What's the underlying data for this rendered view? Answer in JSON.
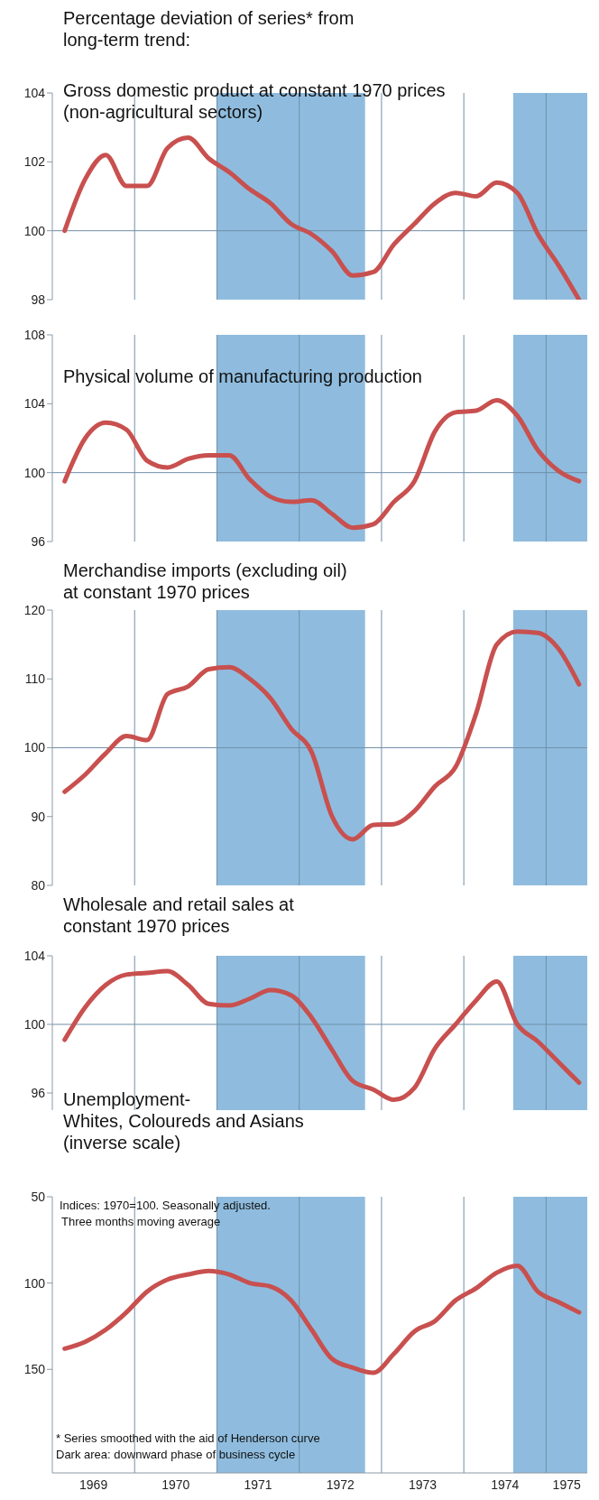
{
  "chart_data": [
    {
      "type": "line",
      "title": "Gross domestic product at constant 1970 prices\n(non-agricultural sectors)",
      "annotations": [
        "Percentage deviation of series* from\nlong-term trend:"
      ],
      "color": "#c8504f",
      "x": [
        1969.15,
        1969.4,
        1969.65,
        1969.9,
        1970.15,
        1970.4,
        1970.65,
        1970.9,
        1971.15,
        1971.4,
        1971.65,
        1971.9,
        1972.15,
        1972.4,
        1972.65,
        1972.9,
        1973.15,
        1973.4,
        1973.65,
        1973.9,
        1974.15,
        1974.4,
        1974.65,
        1974.9,
        1975.15,
        1975.4
      ],
      "values": [
        100.0,
        101.5,
        102.2,
        101.3,
        101.3,
        102.4,
        102.7,
        102.1,
        101.7,
        101.2,
        100.8,
        100.2,
        99.9,
        99.4,
        98.7,
        98.8,
        99.6,
        100.2,
        100.8,
        101.1,
        101.0,
        101.4,
        101.1,
        99.9,
        99.0,
        98.0
      ],
      "xlim": [
        1969,
        1975.5
      ],
      "ylim": [
        98,
        104
      ],
      "yticks": [
        98,
        100,
        102,
        104
      ],
      "tick_labels": "y",
      "ref_lines": [
        {
          "axis": "y",
          "value": 100,
          "color": "#6f8fa8"
        },
        {
          "axis": "x",
          "value": 1970,
          "color": "#6f8fa8"
        },
        {
          "axis": "x",
          "value": 1971,
          "color": "#6f8fa8"
        },
        {
          "axis": "x",
          "value": 1972,
          "color": "#6f8fa8"
        },
        {
          "axis": "x",
          "value": 1973,
          "color": "#6f8fa8"
        },
        {
          "axis": "x",
          "value": 1974,
          "color": "#6f8fa8"
        },
        {
          "axis": "x",
          "value": 1975,
          "color": "#6f8fa8"
        }
      ],
      "bands": [
        {
          "axis": "x",
          "from": 1971,
          "to": 1972.8,
          "color": "#8fbcde"
        },
        {
          "axis": "x",
          "from": 1974.6,
          "to": 1975.5,
          "color": "#8fbcde"
        }
      ]
    },
    {
      "type": "line",
      "title": "Physical volume of manufacturing production",
      "color": "#c8504f",
      "x": [
        1969.15,
        1969.4,
        1969.65,
        1969.9,
        1970.15,
        1970.4,
        1970.65,
        1970.9,
        1971.15,
        1971.4,
        1971.65,
        1971.9,
        1972.15,
        1972.4,
        1972.65,
        1972.9,
        1973.15,
        1973.4,
        1973.65,
        1973.9,
        1974.15,
        1974.4,
        1974.65,
        1974.9,
        1975.15,
        1975.4
      ],
      "values": [
        99.5,
        102.0,
        102.9,
        102.5,
        100.7,
        100.3,
        100.8,
        101.0,
        101.0,
        99.6,
        98.6,
        98.3,
        98.4,
        97.6,
        96.8,
        97.0,
        98.3,
        99.5,
        102.4,
        103.5,
        103.6,
        104.2,
        103.3,
        101.3,
        100.1,
        99.5
      ],
      "xlim": [
        1969,
        1975.5
      ],
      "ylim": [
        96,
        108
      ],
      "yticks": [
        96,
        100,
        104,
        108
      ],
      "tick_labels": "y",
      "ref_lines": [
        {
          "axis": "y",
          "value": 100,
          "color": "#6f8fa8"
        },
        {
          "axis": "x",
          "value": 1970,
          "color": "#6f8fa8"
        },
        {
          "axis": "x",
          "value": 1971,
          "color": "#6f8fa8"
        },
        {
          "axis": "x",
          "value": 1972,
          "color": "#6f8fa8"
        },
        {
          "axis": "x",
          "value": 1973,
          "color": "#6f8fa8"
        },
        {
          "axis": "x",
          "value": 1974,
          "color": "#6f8fa8"
        },
        {
          "axis": "x",
          "value": 1975,
          "color": "#6f8fa8"
        }
      ],
      "bands": [
        {
          "axis": "x",
          "from": 1971,
          "to": 1972.8,
          "color": "#8fbcde"
        },
        {
          "axis": "x",
          "from": 1974.6,
          "to": 1975.5,
          "color": "#8fbcde"
        }
      ]
    },
    {
      "type": "line",
      "title": "Merchandise imports (excluding oil)\nat constant 1970 prices",
      "color": "#c8504f",
      "x": [
        1969.15,
        1969.4,
        1969.65,
        1969.9,
        1970.15,
        1970.4,
        1970.65,
        1970.9,
        1971.15,
        1971.4,
        1971.65,
        1971.9,
        1972.15,
        1972.4,
        1972.65,
        1972.9,
        1973.15,
        1973.4,
        1973.65,
        1973.9,
        1974.15,
        1974.4,
        1974.65,
        1974.9,
        1975.15,
        1975.4
      ],
      "values": [
        93.6,
        96.1,
        99.2,
        101.7,
        101.1,
        107.8,
        108.9,
        111.4,
        111.7,
        110.0,
        107.2,
        102.8,
        99.4,
        90.0,
        86.7,
        88.8,
        88.9,
        90.8,
        94.4,
        97.2,
        105.0,
        115.0,
        116.9,
        116.7,
        114.4,
        109.2
      ],
      "xlim": [
        1969,
        1975.5
      ],
      "ylim": [
        80,
        120
      ],
      "yticks": [
        80,
        90,
        100,
        110,
        120
      ],
      "tick_labels": "y",
      "ref_lines": [
        {
          "axis": "y",
          "value": 100,
          "color": "#6f8fa8"
        },
        {
          "axis": "x",
          "value": 1970,
          "color": "#6f8fa8"
        },
        {
          "axis": "x",
          "value": 1971,
          "color": "#6f8fa8"
        },
        {
          "axis": "x",
          "value": 1972,
          "color": "#6f8fa8"
        },
        {
          "axis": "x",
          "value": 1973,
          "color": "#6f8fa8"
        },
        {
          "axis": "x",
          "value": 1974,
          "color": "#6f8fa8"
        },
        {
          "axis": "x",
          "value": 1975,
          "color": "#6f8fa8"
        }
      ],
      "bands": [
        {
          "axis": "x",
          "from": 1971,
          "to": 1972.8,
          "color": "#8fbcde"
        },
        {
          "axis": "x",
          "from": 1974.6,
          "to": 1975.5,
          "color": "#8fbcde"
        }
      ]
    },
    {
      "type": "line",
      "title": "Wholesale and retail sales at\nconstant 1970 prices",
      "color": "#c8504f",
      "x": [
        1969.15,
        1969.4,
        1969.65,
        1969.9,
        1970.15,
        1970.4,
        1970.65,
        1970.9,
        1971.15,
        1971.4,
        1971.65,
        1971.9,
        1972.15,
        1972.4,
        1972.65,
        1972.9,
        1973.15,
        1973.4,
        1973.65,
        1973.9,
        1974.15,
        1974.4,
        1974.65,
        1974.9,
        1975.15,
        1975.4
      ],
      "values": [
        99.1,
        101.0,
        102.3,
        102.9,
        103.0,
        103.1,
        102.3,
        101.2,
        101.1,
        101.5,
        102.0,
        101.7,
        100.4,
        98.5,
        96.7,
        96.2,
        95.6,
        96.3,
        98.6,
        100.0,
        101.4,
        102.5,
        100.0,
        99.0,
        97.8,
        96.6
      ],
      "xlim": [
        1969,
        1975.5
      ],
      "ylim": [
        95,
        104
      ],
      "yticks": [
        96,
        100,
        104
      ],
      "tick_labels": "y",
      "ref_lines": [
        {
          "axis": "y",
          "value": 100,
          "color": "#6f8fa8"
        },
        {
          "axis": "x",
          "value": 1970,
          "color": "#6f8fa8"
        },
        {
          "axis": "x",
          "value": 1971,
          "color": "#6f8fa8"
        },
        {
          "axis": "x",
          "value": 1972,
          "color": "#6f8fa8"
        },
        {
          "axis": "x",
          "value": 1973,
          "color": "#6f8fa8"
        },
        {
          "axis": "x",
          "value": 1974,
          "color": "#6f8fa8"
        },
        {
          "axis": "x",
          "value": 1975,
          "color": "#6f8fa8"
        }
      ],
      "bands": [
        {
          "axis": "x",
          "from": 1971,
          "to": 1972.8,
          "color": "#8fbcde"
        },
        {
          "axis": "x",
          "from": 1974.6,
          "to": 1975.5,
          "color": "#8fbcde"
        }
      ]
    },
    {
      "type": "line",
      "title": "Unemployment-\nWhites, Coloureds and Asians\n(inverse scale)",
      "annotations": [
        "Indices: 1970=100. Seasonally adjusted.",
        "Three months moving average",
        "* Series smoothed with the aid of Henderson curve",
        "Dark area: downward phase of business cycle"
      ],
      "color": "#c8504f",
      "x": [
        1969.15,
        1969.4,
        1969.65,
        1969.9,
        1970.15,
        1970.4,
        1970.65,
        1970.9,
        1971.15,
        1971.4,
        1971.65,
        1971.9,
        1972.15,
        1972.4,
        1972.65,
        1972.9,
        1973.15,
        1973.4,
        1973.65,
        1973.9,
        1974.15,
        1974.4,
        1974.65,
        1974.9,
        1975.15,
        1975.4
      ],
      "values": [
        138,
        134,
        127,
        117,
        105,
        98,
        95,
        93,
        95,
        100,
        102,
        110,
        127,
        144,
        149,
        152,
        141,
        128,
        122,
        110,
        103,
        94,
        90,
        105,
        111,
        117
      ],
      "xlim": [
        1969,
        1975.5
      ],
      "xticks": [
        {
          "value": 1969.5,
          "label": "1969"
        },
        {
          "value": 1970.5,
          "label": "1970"
        },
        {
          "value": 1971.5,
          "label": "1971"
        },
        {
          "value": 1972.5,
          "label": "1972"
        },
        {
          "value": 1973.5,
          "label": "1973"
        },
        {
          "value": 1974.5,
          "label": "1974"
        },
        {
          "value": 1975.25,
          "label": "1975"
        }
      ],
      "ylim": [
        210,
        50
      ],
      "yticks": [
        50,
        100,
        150
      ],
      "ref_lines": [
        {
          "axis": "x",
          "value": 1970,
          "color": "#6f8fa8"
        },
        {
          "axis": "x",
          "value": 1971,
          "color": "#6f8fa8"
        },
        {
          "axis": "x",
          "value": 1972,
          "color": "#6f8fa8"
        },
        {
          "axis": "x",
          "value": 1973,
          "color": "#6f8fa8"
        },
        {
          "axis": "x",
          "value": 1974,
          "color": "#6f8fa8"
        },
        {
          "axis": "x",
          "value": 1975,
          "color": "#6f8fa8"
        }
      ],
      "bands": [
        {
          "axis": "x",
          "from": 1971,
          "to": 1972.8,
          "color": "#8fbcde"
        },
        {
          "axis": "x",
          "from": 1974.6,
          "to": 1975.5,
          "color": "#8fbcde"
        }
      ]
    }
  ]
}
